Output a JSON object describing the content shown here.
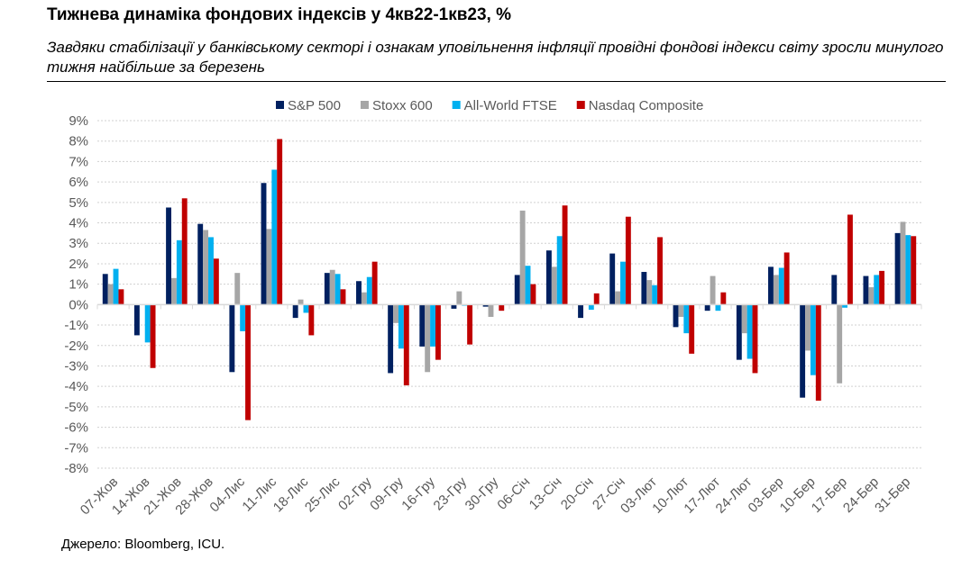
{
  "title": "Тижнева динаміка фондових індексів у 4кв22-1кв23, %",
  "subtitle": "Завдяки стабілізації у банківському секторі і ознакам уповільнення інфляції провідні фондові індекси світу зросли минулого тижня найбільше за березень",
  "source": "Джерело: Bloomberg, ICU.",
  "chart_data": {
    "type": "bar",
    "ylim": [
      -8,
      9
    ],
    "yticks": [
      "-8%",
      "-7%",
      "-6%",
      "-5%",
      "-4%",
      "-3%",
      "-2%",
      "-1%",
      "0%",
      "1%",
      "2%",
      "3%",
      "4%",
      "5%",
      "6%",
      "7%",
      "8%",
      "9%"
    ],
    "grid": true,
    "legend": "top",
    "categories": [
      "07-Жов",
      "14-Жов",
      "21-Жов",
      "28-Жов",
      "04-Лис",
      "11-Лис",
      "18-Лис",
      "25-Лис",
      "02-Гру",
      "09-Гру",
      "16-Гру",
      "23-Гру",
      "30-Гру",
      "06-Січ",
      "13-Січ",
      "20-Січ",
      "27-Січ",
      "03-Лют",
      "10-Лют",
      "17-Лют",
      "24-Лют",
      "03-Бер",
      "10-Бер",
      "17-Бер",
      "24-Бер",
      "31-Бер"
    ],
    "series": [
      {
        "name": "S&P 500",
        "color": "#002060",
        "values": [
          1.5,
          -1.5,
          4.75,
          3.95,
          -3.3,
          5.95,
          -0.65,
          1.55,
          1.15,
          -3.35,
          -2.05,
          -0.2,
          -0.1,
          1.45,
          2.65,
          -0.65,
          2.5,
          1.6,
          -1.1,
          -0.3,
          -2.7,
          1.85,
          -4.55,
          1.45,
          1.4,
          3.5
        ]
      },
      {
        "name": "Stoxx 600",
        "color": "#A6A6A6",
        "values": [
          1.0,
          0.0,
          1.3,
          3.65,
          1.55,
          3.7,
          0.25,
          1.7,
          0.6,
          -0.9,
          -3.3,
          0.65,
          -0.6,
          4.6,
          1.85,
          0.0,
          0.65,
          1.2,
          -0.6,
          1.4,
          -1.4,
          1.45,
          -2.25,
          -3.85,
          0.85,
          4.05
        ]
      },
      {
        "name": "All-World FTSE",
        "color": "#00B0F0",
        "values": [
          1.75,
          -1.85,
          3.15,
          3.3,
          -1.3,
          6.6,
          -0.4,
          1.5,
          1.35,
          -2.15,
          -2.05,
          -0.05,
          0.0,
          1.9,
          3.35,
          -0.25,
          2.1,
          0.95,
          -1.4,
          -0.3,
          -2.65,
          1.8,
          -3.45,
          -0.15,
          1.45,
          3.4
        ]
      },
      {
        "name": "Nasdaq Composite",
        "color": "#C00000",
        "values": [
          0.75,
          -3.1,
          5.2,
          2.25,
          -5.65,
          8.1,
          -1.5,
          0.75,
          2.1,
          -3.95,
          -2.7,
          -1.95,
          -0.3,
          1.0,
          4.85,
          0.55,
          4.3,
          3.3,
          -2.4,
          0.6,
          -3.35,
          2.55,
          -4.7,
          4.4,
          1.65,
          3.35
        ]
      }
    ]
  }
}
